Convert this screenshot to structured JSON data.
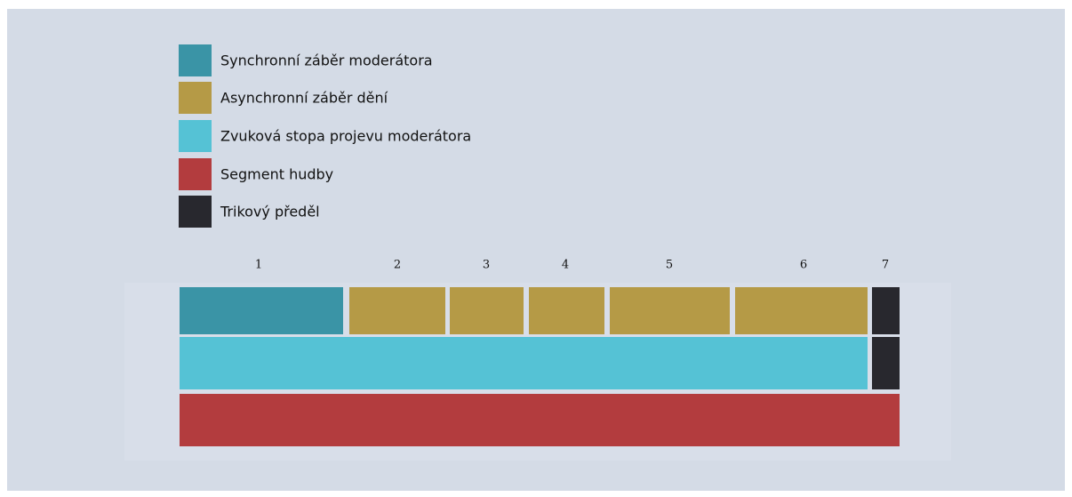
{
  "legend": {
    "items": [
      {
        "label": "Synchronní záběr moderátora",
        "color": "#3a94a6"
      },
      {
        "label": "Asynchronní záběr dění",
        "color": "#b59a46"
      },
      {
        "label": "Zvuková stopa projevu moderátora",
        "color": "#55c2d5"
      },
      {
        "label": "Segment hudby",
        "color": "#b33c3e"
      },
      {
        "label": "Trikový předěl",
        "color": "#28282e"
      }
    ]
  },
  "segments": {
    "labels": [
      "1",
      "2",
      "3",
      "4",
      "5",
      "6",
      "7"
    ]
  }
}
